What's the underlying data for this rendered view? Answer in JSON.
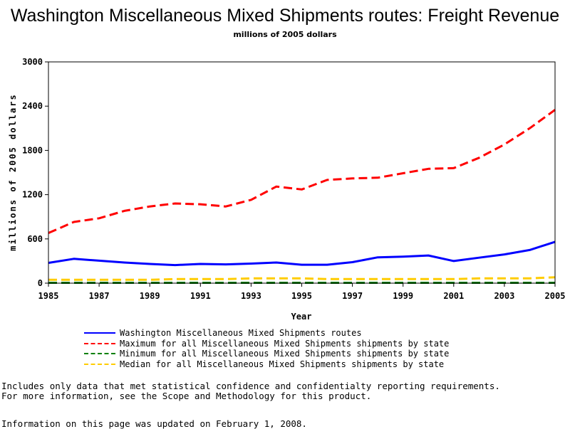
{
  "chart_data": {
    "type": "line",
    "title": "Washington Miscellaneous Mixed Shipments routes: Freight Revenue",
    "subtitle": "millions of 2005 dollars",
    "xlabel": "Year",
    "ylabel": "millions of 2005 dollars",
    "xlim": [
      1985,
      2005
    ],
    "ylim": [
      0,
      3000
    ],
    "x_ticks": [
      "1985",
      "1987",
      "1989",
      "1991",
      "1993",
      "1995",
      "1997",
      "1999",
      "2001",
      "2003",
      "2005"
    ],
    "y_ticks": [
      "0",
      "600",
      "1200",
      "1800",
      "2400",
      "3000"
    ],
    "grid": false,
    "legend_position": "bottom",
    "x": [
      1985,
      1986,
      1987,
      1988,
      1989,
      1990,
      1991,
      1992,
      1993,
      1994,
      1995,
      1996,
      1997,
      1998,
      1999,
      2000,
      2001,
      2002,
      2003,
      2004,
      2005
    ],
    "series": [
      {
        "name": "Washington Miscellaneous Mixed Shipments routes",
        "color": "#0000ff",
        "dash": "solid",
        "values": [
          275,
          330,
          305,
          280,
          260,
          245,
          260,
          255,
          265,
          280,
          250,
          250,
          285,
          350,
          360,
          375,
          300,
          345,
          390,
          450,
          560
        ]
      },
      {
        "name": "Maximum for all Miscellaneous Mixed Shipments shipments by state",
        "color": "#ff0000",
        "dash": "dashed",
        "values": [
          680,
          830,
          880,
          980,
          1040,
          1080,
          1070,
          1040,
          1130,
          1310,
          1270,
          1400,
          1420,
          1430,
          1490,
          1550,
          1560,
          1700,
          1880,
          2100,
          2350
        ]
      },
      {
        "name": "Minimum for all Miscellaneous Mixed Shipments shipments by state",
        "color": "#008000",
        "dash": "dashed",
        "values": [
          5,
          5,
          5,
          5,
          5,
          5,
          5,
          5,
          5,
          5,
          5,
          5,
          5,
          5,
          5,
          5,
          5,
          5,
          5,
          5,
          5
        ]
      },
      {
        "name": "Median for all Miscellaneous Mixed Shipments shipments by state",
        "color": "#ffcc00",
        "dash": "dashed",
        "values": [
          45,
          45,
          45,
          45,
          45,
          55,
          55,
          55,
          65,
          65,
          65,
          55,
          55,
          55,
          55,
          55,
          55,
          65,
          65,
          65,
          80
        ]
      }
    ]
  },
  "footnotes": {
    "line1": "Includes only data that met statistical confidence and confidentialty reporting requirements.",
    "line2": "For more information, see the Scope and Methodology for this product."
  },
  "updated": "Information on this page was updated on February 1, 2008."
}
